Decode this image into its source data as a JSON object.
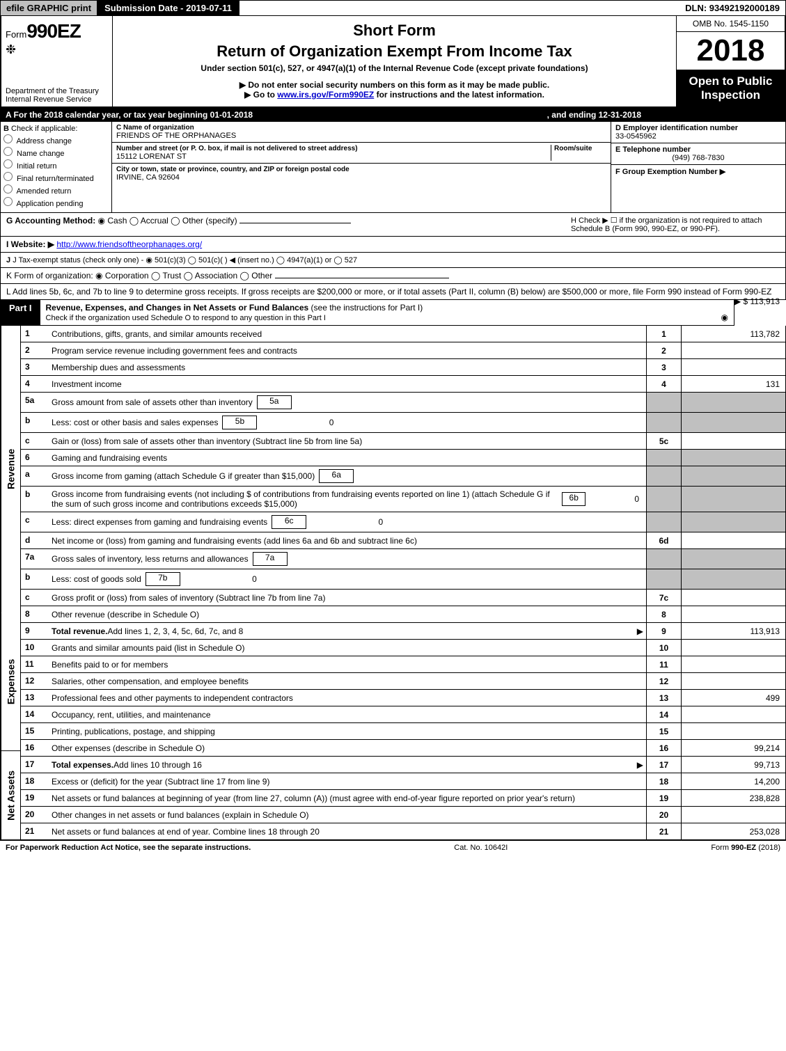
{
  "top_bar": {
    "efile": "efile GRAPHIC print",
    "submission": "Submission Date - 2019-07-11",
    "dln": "DLN: 93492192000189"
  },
  "header": {
    "form_prefix": "Form",
    "form_number": "990EZ",
    "dept": "Department of the Treasury",
    "irs": "Internal Revenue Service",
    "short_form": "Short Form",
    "title": "Return of Organization Exempt From Income Tax",
    "subtitle": "Under section 501(c), 527, or 4947(a)(1) of the Internal Revenue Code (except private foundations)",
    "instr1": "▶ Do not enter social security numbers on this form as it may be made public.",
    "instr2_prefix": "▶ Go to ",
    "instr2_link": "www.irs.gov/Form990EZ",
    "instr2_suffix": " for instructions and the latest information.",
    "omb": "OMB No. 1545-1150",
    "year": "2018",
    "public": "Open to Public Inspection"
  },
  "line_a": {
    "text": "A  For the 2018 calendar year, or tax year beginning 01-01-2018",
    "ending": ", and ending 12-31-2018"
  },
  "section_b": {
    "label": "B",
    "heading": "Check if applicable:",
    "opts": [
      "Address change",
      "Name change",
      "Initial return",
      "Final return/terminated",
      "Amended return",
      "Application pending"
    ]
  },
  "section_c": {
    "name_label": "C Name of organization",
    "name_value": "FRIENDS OF THE ORPHANAGES",
    "addr_label": "Number and street (or P. O. box, if mail is not delivered to street address)",
    "room_label": "Room/suite",
    "addr_value": "15112 LORENAT ST",
    "city_label": "City or town, state or province, country, and ZIP or foreign postal code",
    "city_value": "IRVINE, CA  92604"
  },
  "section_d": {
    "ein_label": "D Employer identification number",
    "ein_value": "33-0545962",
    "tel_label": "E Telephone number",
    "tel_value": "(949) 768-7830",
    "group_label": "F Group Exemption Number  ▶"
  },
  "row_g": {
    "label": "G Accounting Method:",
    "opts": [
      "Cash",
      "Accrual",
      "Other (specify)"
    ],
    "h_text": "H  Check ▶  ☐  if the organization is not required to attach Schedule B (Form 990, 990-EZ, or 990-PF)."
  },
  "row_i": {
    "label": "I Website: ▶",
    "url": "http://www.friendsoftheorphanages.org/"
  },
  "row_j": {
    "text": "J Tax-exempt status (check only one) - ◉ 501(c)(3)  ◯ 501(c)(  ) ◀ (insert no.)  ◯ 4947(a)(1) or  ◯ 527"
  },
  "row_k": {
    "text": "K Form of organization:   ◉ Corporation   ◯ Trust   ◯ Association   ◯ Other"
  },
  "row_l": {
    "text": "L Add lines 5b, 6c, and 7b to line 9 to determine gross receipts. If gross receipts are $200,000 or more, or if total assets (Part II, column (B) below) are $500,000 or more, file Form 990 instead of Form 990-EZ",
    "value": "▶ $ 113,913"
  },
  "part1": {
    "label": "Part I",
    "title": "Revenue, Expenses, and Changes in Net Assets or Fund Balances",
    "note": "(see the instructions for Part I)",
    "check_note": "Check if the organization used Schedule O to respond to any question in this Part I"
  },
  "sections": {
    "revenue": "Revenue",
    "expenses": "Expenses",
    "netassets": "Net Assets"
  },
  "lines": [
    {
      "n": "1",
      "desc": "Contributions, gifts, grants, and similar amounts received",
      "idx": "1",
      "val": "113,782",
      "sec": "revenue"
    },
    {
      "n": "2",
      "desc": "Program service revenue including government fees and contracts",
      "idx": "2",
      "val": "",
      "sec": "revenue"
    },
    {
      "n": "3",
      "desc": "Membership dues and assessments",
      "idx": "3",
      "val": "",
      "sec": "revenue"
    },
    {
      "n": "4",
      "desc": "Investment income",
      "idx": "4",
      "val": "131",
      "sec": "revenue"
    },
    {
      "n": "5a",
      "desc": "Gross amount from sale of assets other than inventory",
      "inline_idx": "5a",
      "inline_val": "",
      "grey": true,
      "sec": "revenue"
    },
    {
      "n": "b",
      "desc": "Less: cost or other basis and sales expenses",
      "inline_idx": "5b",
      "inline_val": "0",
      "grey": true,
      "sec": "revenue"
    },
    {
      "n": "c",
      "desc": "Gain or (loss) from sale of assets other than inventory (Subtract line 5b from line 5a)",
      "idx": "5c",
      "val": "",
      "sec": "revenue"
    },
    {
      "n": "6",
      "desc": "Gaming and fundraising events",
      "grey": true,
      "no_idx": true,
      "sec": "revenue"
    },
    {
      "n": "a",
      "desc": "Gross income from gaming (attach Schedule G if greater than $15,000)",
      "inline_idx": "6a",
      "inline_val": "",
      "grey": true,
      "sec": "revenue"
    },
    {
      "n": "b",
      "desc": "Gross income from fundraising events (not including $                  of contributions from fundraising events reported on line 1) (attach Schedule G if the sum of such gross income and contributions exceeds $15,000)",
      "inline_idx": "6b",
      "inline_val": "0",
      "grey": true,
      "sec": "revenue"
    },
    {
      "n": "c",
      "desc": "Less: direct expenses from gaming and fundraising events",
      "inline_idx": "6c",
      "inline_val": "0",
      "grey": true,
      "sec": "revenue"
    },
    {
      "n": "d",
      "desc": "Net income or (loss) from gaming and fundraising events (add lines 6a and 6b and subtract line 6c)",
      "idx": "6d",
      "val": "",
      "sec": "revenue"
    },
    {
      "n": "7a",
      "desc": "Gross sales of inventory, less returns and allowances",
      "inline_idx": "7a",
      "inline_val": "",
      "grey": true,
      "sec": "revenue"
    },
    {
      "n": "b",
      "desc": "Less: cost of goods sold",
      "inline_idx": "7b",
      "inline_val": "0",
      "grey": true,
      "sec": "revenue"
    },
    {
      "n": "c",
      "desc": "Gross profit or (loss) from sales of inventory (Subtract line 7b from line 7a)",
      "idx": "7c",
      "val": "",
      "sec": "revenue"
    },
    {
      "n": "8",
      "desc": "Other revenue (describe in Schedule O)",
      "idx": "8",
      "val": "",
      "sec": "revenue"
    },
    {
      "n": "9",
      "desc": "Total revenue. Add lines 1, 2, 3, 4, 5c, 6d, 7c, and 8",
      "idx": "9",
      "val": "113,913",
      "bold": true,
      "arrow": true,
      "sec": "revenue"
    },
    {
      "n": "10",
      "desc": "Grants and similar amounts paid (list in Schedule O)",
      "idx": "10",
      "val": "",
      "sec": "expenses"
    },
    {
      "n": "11",
      "desc": "Benefits paid to or for members",
      "idx": "11",
      "val": "",
      "sec": "expenses"
    },
    {
      "n": "12",
      "desc": "Salaries, other compensation, and employee benefits",
      "idx": "12",
      "val": "",
      "sec": "expenses"
    },
    {
      "n": "13",
      "desc": "Professional fees and other payments to independent contractors",
      "idx": "13",
      "val": "499",
      "sec": "expenses"
    },
    {
      "n": "14",
      "desc": "Occupancy, rent, utilities, and maintenance",
      "idx": "14",
      "val": "",
      "sec": "expenses"
    },
    {
      "n": "15",
      "desc": "Printing, publications, postage, and shipping",
      "idx": "15",
      "val": "",
      "sec": "expenses"
    },
    {
      "n": "16",
      "desc": "Other expenses (describe in Schedule O)",
      "idx": "16",
      "val": "99,214",
      "sec": "expenses"
    },
    {
      "n": "17",
      "desc": "Total expenses. Add lines 10 through 16",
      "idx": "17",
      "val": "99,713",
      "bold": true,
      "arrow": true,
      "sec": "expenses"
    },
    {
      "n": "18",
      "desc": "Excess or (deficit) for the year (Subtract line 17 from line 9)",
      "idx": "18",
      "val": "14,200",
      "sec": "netassets"
    },
    {
      "n": "19",
      "desc": "Net assets or fund balances at beginning of year (from line 27, column (A)) (must agree with end-of-year figure reported on prior year's return)",
      "idx": "19",
      "val": "238,828",
      "sec": "netassets"
    },
    {
      "n": "20",
      "desc": "Other changes in net assets or fund balances (explain in Schedule O)",
      "idx": "20",
      "val": "",
      "sec": "netassets"
    },
    {
      "n": "21",
      "desc": "Net assets or fund balances at end of year. Combine lines 18 through 20",
      "idx": "21",
      "val": "253,028",
      "sec": "netassets"
    }
  ],
  "footer": {
    "left": "For Paperwork Reduction Act Notice, see the separate instructions.",
    "mid": "Cat. No. 10642I",
    "right": "Form 990-EZ (2018)"
  }
}
